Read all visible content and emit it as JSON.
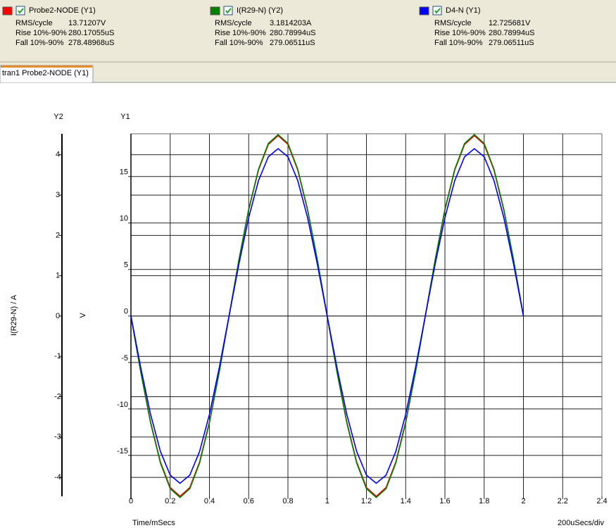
{
  "tab": "tran1 Probe2-NODE (Y1)",
  "legend_stats": [
    [
      [
        "RMS/cycle",
        "13.71207V"
      ],
      [
        "Rise 10%-90%",
        "280.17055uS"
      ],
      [
        "Fall 10%-90%",
        "278.48968uS"
      ]
    ],
    [
      [
        "RMS/cycle",
        "3.1814203A"
      ],
      [
        "Rise 10%-90%",
        "280.78994uS"
      ],
      [
        "Fall 10%-90%",
        "279.06511uS"
      ]
    ],
    [
      [
        "RMS/cycle",
        "12.725681V"
      ],
      [
        "Rise 10%-90%",
        "280.78994uS"
      ],
      [
        "Fall 10%-90%",
        "279.06511uS"
      ]
    ]
  ],
  "chart_data": {
    "type": "line",
    "x_label": "Time/mSecs",
    "x_scale_label": "200uSecs/div",
    "y_header": "Y1",
    "y_label": "V",
    "y2_header": "Y2",
    "y2_label": "I(R29-N) / A",
    "grid": true,
    "xlim": [
      0,
      2.4
    ],
    "xticks": [
      0,
      0.2,
      0.4,
      0.6,
      0.8,
      1,
      1.2,
      1.4,
      1.6,
      1.8,
      2,
      2.2,
      2.4
    ],
    "ylim": [
      -19.4,
      19.6
    ],
    "yticks": [
      -15,
      -10,
      -5,
      0,
      5,
      10,
      15
    ],
    "y2lim": [
      -4.47,
      4.52
    ],
    "y2ticks": [
      -4,
      -3,
      -2,
      -1,
      0,
      1,
      2,
      3,
      4
    ],
    "x": [
      0,
      0.05,
      0.1,
      0.15,
      0.2,
      0.25,
      0.3,
      0.35,
      0.4,
      0.45,
      0.5,
      0.55,
      0.6,
      0.65,
      0.7,
      0.75,
      0.8,
      0.85,
      0.9,
      0.95,
      1,
      1.05,
      1.1,
      1.15,
      1.2,
      1.25,
      1.3,
      1.35,
      1.4,
      1.45,
      1.5,
      1.55,
      1.6,
      1.65,
      1.7,
      1.75,
      1.8,
      1.85,
      1.9,
      1.95,
      2
    ],
    "series": [
      {
        "name": "Probe2-NODE (Y1)",
        "color": "#ff0000",
        "axis": "y",
        "values": [
          0,
          -5.99,
          -11.4,
          -15.69,
          -18.45,
          -19.4,
          -18.45,
          -15.69,
          -11.4,
          -5.99,
          0,
          5.99,
          11.4,
          15.69,
          18.45,
          19.4,
          18.45,
          15.69,
          11.4,
          5.99,
          0,
          -5.99,
          -11.4,
          -15.69,
          -18.45,
          -19.4,
          -18.45,
          -15.69,
          -11.4,
          -5.99,
          0,
          5.99,
          11.4,
          15.69,
          18.45,
          19.4,
          18.45,
          15.69,
          11.4,
          5.99,
          0
        ]
      },
      {
        "name": "I(R29-N) (Y2)",
        "color": "#007f00",
        "axis": "y2",
        "values": [
          0,
          -1.39,
          -2.65,
          -3.64,
          -4.28,
          -4.5,
          -4.28,
          -3.64,
          -2.65,
          -1.39,
          0,
          1.39,
          2.65,
          3.64,
          4.28,
          4.5,
          4.28,
          3.64,
          2.65,
          1.39,
          0,
          -1.39,
          -2.65,
          -3.64,
          -4.28,
          -4.5,
          -4.28,
          -3.64,
          -2.65,
          -1.39,
          0,
          1.39,
          2.65,
          3.64,
          4.28,
          4.5,
          4.28,
          3.64,
          2.65,
          1.39,
          0
        ]
      },
      {
        "name": "D4-N (Y1)",
        "color": "#0000ff",
        "axis": "y",
        "values": [
          0,
          -5.56,
          -10.58,
          -14.56,
          -17.12,
          -18,
          -17.12,
          -14.56,
          -10.58,
          -5.56,
          0,
          5.56,
          10.58,
          14.56,
          17.12,
          18,
          17.12,
          14.56,
          10.58,
          5.56,
          0,
          -5.56,
          -10.58,
          -14.56,
          -17.12,
          -18,
          -17.12,
          -14.56,
          -10.58,
          -5.56,
          0,
          5.56,
          10.58,
          14.56,
          17.12,
          18,
          17.12,
          14.56,
          10.58,
          5.56,
          0
        ]
      }
    ]
  }
}
